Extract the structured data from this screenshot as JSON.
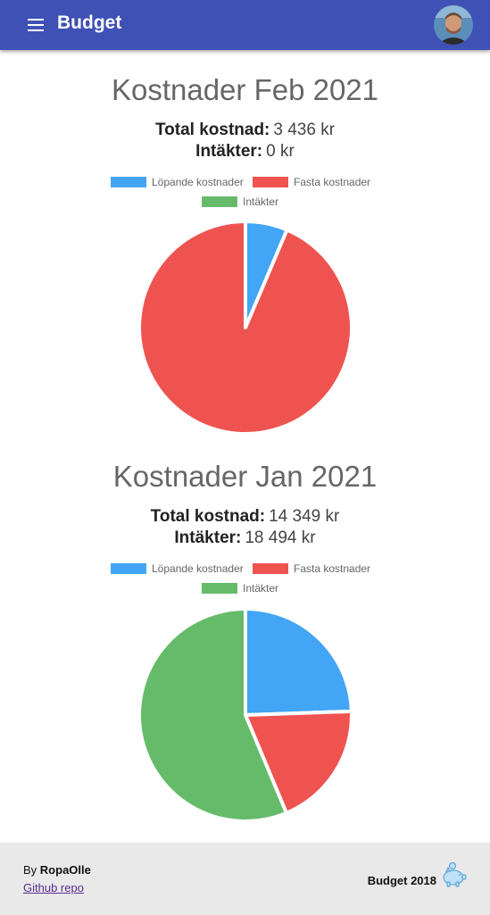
{
  "appbar": {
    "title": "Budget",
    "menu_icon": "menu-icon",
    "avatar": "user-avatar"
  },
  "colors": {
    "appbar": "#3f51b5",
    "lopande": "#42a5f5",
    "fasta": "#ef5350",
    "intakter": "#66bb6a"
  },
  "sections": [
    {
      "title": "Kostnader Feb 2021",
      "total_label": "Total kostnad:",
      "total_value": "3 436 kr",
      "income_label": "Intäkter:",
      "income_value": "0 kr"
    },
    {
      "title": "Kostnader Jan 2021",
      "total_label": "Total kostnad:",
      "total_value": "14 349 kr",
      "income_label": "Intäkter:",
      "income_value": "18 494 kr"
    }
  ],
  "chart_data": [
    {
      "type": "pie",
      "title": "",
      "legend": [
        "Löpande kostnader",
        "Fasta kostnader",
        "Intäkter"
      ],
      "legend_position": "top",
      "labels": [
        "Löpande kostnader",
        "Fasta kostnader",
        "Intäkter"
      ],
      "values": [
        220,
        3216,
        0
      ]
    },
    {
      "type": "pie",
      "title": "",
      "legend": [
        "Löpande kostnader",
        "Fasta kostnader",
        "Intäkter"
      ],
      "legend_position": "top",
      "labels": [
        "Löpande kostnader",
        "Fasta kostnader",
        "Intäkter"
      ],
      "values": [
        8030,
        6319,
        18494
      ]
    }
  ],
  "footer": {
    "by_prefix": "By",
    "author": "RopaOlle",
    "repo_link": "Github repo",
    "brand": "Budget 2018",
    "brand_icon": "piggy-bank-icon"
  }
}
